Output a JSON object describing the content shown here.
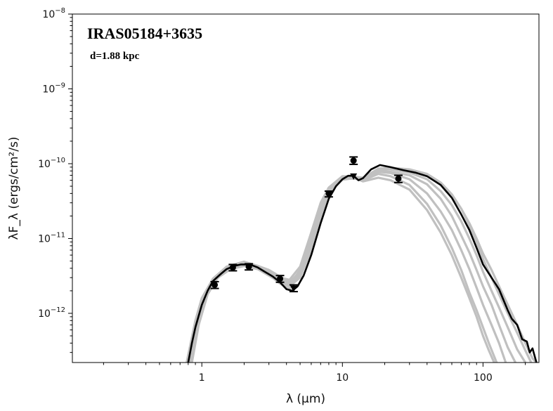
{
  "chart_data": {
    "type": "line",
    "title": "IRAS05184+3635",
    "subtitle": "d=1.88 kpc",
    "xlabel": "λ (μm)",
    "ylabel": "λF_λ (ergs/cm²/s)",
    "xscale": "log",
    "yscale": "log",
    "xlim": [
      0.12,
      250
    ],
    "ylim": [
      2.2e-13,
      1e-08
    ],
    "x_ticks": [
      {
        "value": 1,
        "label": "1"
      },
      {
        "value": 10,
        "label": "10"
      },
      {
        "value": 100,
        "label": "100"
      }
    ],
    "y_ticks": [
      {
        "value": 1e-12,
        "base": "10",
        "exp": "−12"
      },
      {
        "value": 1e-11,
        "base": "10",
        "exp": "−11"
      },
      {
        "value": 1e-10,
        "base": "10",
        "exp": "−10"
      },
      {
        "value": 1e-09,
        "base": "10",
        "exp": "−9"
      },
      {
        "value": 1e-08,
        "base": "10",
        "exp": "−8"
      }
    ],
    "grid": false,
    "observations": [
      {
        "x": 1.235,
        "y": 2.4e-12,
        "err_low": 2.15e-12,
        "err_high": 2.65e-12,
        "marker": "circle"
      },
      {
        "x": 1.662,
        "y": 4.1e-12,
        "err_low": 3.7e-12,
        "err_high": 4.5e-12,
        "marker": "circle"
      },
      {
        "x": 2.159,
        "y": 4.2e-12,
        "err_low": 3.8e-12,
        "err_high": 4.6e-12,
        "marker": "circle"
      },
      {
        "x": 3.6,
        "y": 2.9e-12,
        "err_low": 2.6e-12,
        "err_high": 3.2e-12,
        "marker": "circle"
      },
      {
        "x": 4.5,
        "y": 2.15e-12,
        "err_low": 1.95e-12,
        "err_high": 2.4e-12,
        "marker": "triangle"
      },
      {
        "x": 8.0,
        "y": 4e-11,
        "err_low": 3.6e-11,
        "err_high": 4.3e-11,
        "marker": "circle"
      },
      {
        "x": 12.0,
        "y": 1.1e-10,
        "err_low": 9.8e-11,
        "err_high": 1.23e-10,
        "marker": "circle"
      },
      {
        "x": 12.0,
        "y": 6.8e-11,
        "marker": "triangle"
      },
      {
        "x": 25.0,
        "y": 6.3e-11,
        "err_low": 5.6e-11,
        "err_high": 7e-11,
        "marker": "circle"
      }
    ],
    "series": [
      {
        "style": "best",
        "color": "#000000",
        "points": [
          [
            0.8,
            2.2e-13
          ],
          [
            0.85,
            4e-13
          ],
          [
            0.9,
            6.5e-13
          ],
          [
            1.0,
            1.3e-12
          ],
          [
            1.1,
            2e-12
          ],
          [
            1.2,
            2.7e-12
          ],
          [
            1.35,
            3.3e-12
          ],
          [
            1.5,
            3.9e-12
          ],
          [
            1.7,
            4.3e-12
          ],
          [
            1.9,
            4.5e-12
          ],
          [
            2.2,
            4.5e-12
          ],
          [
            2.5,
            4.1e-12
          ],
          [
            2.8,
            3.6e-12
          ],
          [
            3.2,
            3.1e-12
          ],
          [
            3.6,
            2.6e-12
          ],
          [
            4.0,
            2.1e-12
          ],
          [
            4.4,
            2e-12
          ],
          [
            4.8,
            2.3e-12
          ],
          [
            5.3,
            3.2e-12
          ],
          [
            6.0,
            6e-12
          ],
          [
            7.0,
            1.6e-11
          ],
          [
            8.0,
            3.4e-11
          ],
          [
            9.0,
            5e-11
          ],
          [
            10.0,
            6.2e-11
          ],
          [
            11.0,
            6.9e-11
          ],
          [
            12.0,
            6.9e-11
          ],
          [
            13.0,
            6e-11
          ],
          [
            14.0,
            6.4e-11
          ],
          [
            16.0,
            8.4e-11
          ],
          [
            18.5,
            9.6e-11
          ],
          [
            22.0,
            9e-11
          ],
          [
            27.0,
            8.2e-11
          ],
          [
            33.0,
            7.6e-11
          ],
          [
            40.0,
            6.8e-11
          ],
          [
            50.0,
            5.2e-11
          ],
          [
            60.0,
            3.5e-11
          ],
          [
            70.0,
            2.1e-11
          ],
          [
            80.0,
            1.3e-11
          ],
          [
            90.0,
            7.5e-12
          ],
          [
            100.0,
            4.5e-12
          ],
          [
            115.0,
            3e-12
          ],
          [
            130.0,
            2.1e-12
          ],
          [
            140.0,
            1.5e-12
          ],
          [
            150.0,
            1.1e-12
          ],
          [
            160.0,
            8.5e-13
          ],
          [
            175.0,
            7e-13
          ],
          [
            190.0,
            4.5e-13
          ],
          [
            205.0,
            4.2e-13
          ],
          [
            215.0,
            3e-13
          ],
          [
            225.0,
            3.4e-13
          ],
          [
            240.0,
            2.2e-13
          ]
        ]
      },
      {
        "style": "model",
        "color": "#c0c0c0",
        "points": [
          [
            0.82,
            2.2e-13
          ],
          [
            0.9,
            6.5e-13
          ],
          [
            1.0,
            1.5e-12
          ],
          [
            1.2,
            2.9e-12
          ],
          [
            1.5,
            4.1e-12
          ],
          [
            2.0,
            4.7e-12
          ],
          [
            2.5,
            4.2e-12
          ],
          [
            3.0,
            3.5e-12
          ],
          [
            3.6,
            2.7e-12
          ],
          [
            4.2,
            2.3e-12
          ],
          [
            5.0,
            3e-12
          ],
          [
            6.0,
            7e-12
          ],
          [
            7.0,
            1.9e-11
          ],
          [
            8.0,
            3.8e-11
          ],
          [
            10.0,
            6.5e-11
          ],
          [
            12.0,
            6.4e-11
          ],
          [
            14.0,
            6e-11
          ],
          [
            18.0,
            7.3e-11
          ],
          [
            22.0,
            6.8e-11
          ],
          [
            30.0,
            5.2e-11
          ],
          [
            40.0,
            2.9e-11
          ],
          [
            50.0,
            1.5e-11
          ],
          [
            60.0,
            7.5e-12
          ],
          [
            70.0,
            3.8e-12
          ],
          [
            80.0,
            1.9e-12
          ],
          [
            90.0,
            1.1e-12
          ],
          [
            100.0,
            6.5e-13
          ],
          [
            110.0,
            4e-13
          ],
          [
            125.0,
            2.2e-13
          ]
        ]
      },
      {
        "style": "model",
        "color": "#c0c0c0",
        "points": [
          [
            0.78,
            2.2e-13
          ],
          [
            0.9,
            8e-13
          ],
          [
            1.0,
            1.6e-12
          ],
          [
            1.2,
            2.9e-12
          ],
          [
            1.5,
            4.2e-12
          ],
          [
            2.0,
            4.9e-12
          ],
          [
            2.5,
            4.3e-12
          ],
          [
            3.0,
            3.3e-12
          ],
          [
            3.6,
            2.5e-12
          ],
          [
            4.2,
            2.1e-12
          ],
          [
            5.0,
            3.5e-12
          ],
          [
            6.0,
            9e-12
          ],
          [
            7.0,
            2.4e-11
          ],
          [
            8.0,
            4.2e-11
          ],
          [
            10.0,
            6.2e-11
          ],
          [
            12.0,
            6.5e-11
          ],
          [
            14.0,
            5.8e-11
          ],
          [
            18.0,
            6.5e-11
          ],
          [
            22.0,
            6e-11
          ],
          [
            30.0,
            4.5e-11
          ],
          [
            40.0,
            2.4e-11
          ],
          [
            50.0,
            1.2e-11
          ],
          [
            60.0,
            6e-12
          ],
          [
            70.0,
            3e-12
          ],
          [
            80.0,
            1.6e-12
          ],
          [
            90.0,
            9e-13
          ],
          [
            100.0,
            5e-13
          ],
          [
            110.0,
            3.2e-13
          ],
          [
            120.0,
            2.2e-13
          ]
        ]
      },
      {
        "style": "model",
        "color": "#c0c0c0",
        "points": [
          [
            0.85,
            2.2e-13
          ],
          [
            0.95,
            7e-13
          ],
          [
            1.1,
            1.8e-12
          ],
          [
            1.3,
            3e-12
          ],
          [
            1.6,
            3.9e-12
          ],
          [
            2.0,
            4.3e-12
          ],
          [
            2.5,
            3.9e-12
          ],
          [
            3.0,
            3.2e-12
          ],
          [
            3.6,
            2.6e-12
          ],
          [
            4.2,
            2.4e-12
          ],
          [
            5.0,
            3.8e-12
          ],
          [
            6.0,
            1.1e-11
          ],
          [
            7.0,
            2.7e-11
          ],
          [
            8.0,
            4.5e-11
          ],
          [
            10.0,
            6.6e-11
          ],
          [
            12.0,
            6.6e-11
          ],
          [
            14.0,
            6.3e-11
          ],
          [
            18.0,
            8e-11
          ],
          [
            22.0,
            7.8e-11
          ],
          [
            30.0,
            7e-11
          ],
          [
            40.0,
            5.3e-11
          ],
          [
            50.0,
            3.4e-11
          ],
          [
            60.0,
            2e-11
          ],
          [
            70.0,
            1.1e-11
          ],
          [
            80.0,
            6.5e-12
          ],
          [
            90.0,
            3.8e-12
          ],
          [
            100.0,
            2.3e-12
          ],
          [
            115.0,
            1.3e-12
          ],
          [
            130.0,
            7e-13
          ],
          [
            150.0,
            3.5e-13
          ],
          [
            170.0,
            2.2e-13
          ]
        ]
      },
      {
        "style": "model",
        "color": "#c0c0c0",
        "points": [
          [
            0.8,
            2.2e-13
          ],
          [
            0.9,
            7e-13
          ],
          [
            1.0,
            1.4e-12
          ],
          [
            1.2,
            2.6e-12
          ],
          [
            1.5,
            3.8e-12
          ],
          [
            2.0,
            4.4e-12
          ],
          [
            2.5,
            4.1e-12
          ],
          [
            3.0,
            3.6e-12
          ],
          [
            3.6,
            3e-12
          ],
          [
            4.2,
            2.8e-12
          ],
          [
            5.0,
            4.2e-12
          ],
          [
            6.0,
            1.2e-11
          ],
          [
            7.0,
            3e-11
          ],
          [
            8.0,
            4.8e-11
          ],
          [
            10.0,
            6.8e-11
          ],
          [
            12.0,
            6.7e-11
          ],
          [
            14.0,
            6.5e-11
          ],
          [
            18.0,
            8.5e-11
          ],
          [
            22.0,
            8.4e-11
          ],
          [
            30.0,
            7.6e-11
          ],
          [
            40.0,
            6.2e-11
          ],
          [
            50.0,
            4.3e-11
          ],
          [
            60.0,
            2.8e-11
          ],
          [
            70.0,
            1.7e-11
          ],
          [
            80.0,
            1e-11
          ],
          [
            90.0,
            6e-12
          ],
          [
            100.0,
            3.6e-12
          ],
          [
            115.0,
            2e-12
          ],
          [
            130.0,
            1.2e-12
          ],
          [
            150.0,
            6.5e-13
          ],
          [
            175.0,
            3.3e-13
          ],
          [
            200.0,
            2.2e-13
          ]
        ]
      },
      {
        "style": "model",
        "color": "#c0c0c0",
        "points": [
          [
            0.84,
            2.2e-13
          ],
          [
            0.95,
            9e-13
          ],
          [
            1.1,
            2.1e-12
          ],
          [
            1.3,
            3.2e-12
          ],
          [
            1.6,
            4e-12
          ],
          [
            2.0,
            4.5e-12
          ],
          [
            2.5,
            4.3e-12
          ],
          [
            3.0,
            3.8e-12
          ],
          [
            3.6,
            3.1e-12
          ],
          [
            4.2,
            2.6e-12
          ],
          [
            5.0,
            3.6e-12
          ],
          [
            6.0,
            1e-11
          ],
          [
            7.0,
            2.6e-11
          ],
          [
            8.0,
            4.5e-11
          ],
          [
            10.0,
            6.4e-11
          ],
          [
            12.0,
            6.3e-11
          ],
          [
            14.0,
            6.2e-11
          ],
          [
            18.0,
            8.2e-11
          ],
          [
            22.0,
            8.6e-11
          ],
          [
            30.0,
            8.1e-11
          ],
          [
            40.0,
            7e-11
          ],
          [
            50.0,
            5.3e-11
          ],
          [
            60.0,
            3.8e-11
          ],
          [
            70.0,
            2.5e-11
          ],
          [
            80.0,
            1.6e-11
          ],
          [
            90.0,
            1e-11
          ],
          [
            100.0,
            6.3e-12
          ],
          [
            115.0,
            3.8e-12
          ],
          [
            130.0,
            2.3e-12
          ],
          [
            150.0,
            1.3e-12
          ],
          [
            175.0,
            7e-13
          ],
          [
            200.0,
            4e-13
          ],
          [
            225.0,
            2.5e-13
          ],
          [
            240.0,
            2.2e-13
          ]
        ]
      },
      {
        "style": "model",
        "color": "#c0c0c0",
        "points": [
          [
            0.79,
            2.2e-13
          ],
          [
            0.88,
            6e-13
          ],
          [
            1.0,
            1.5e-12
          ],
          [
            1.2,
            2.8e-12
          ],
          [
            1.5,
            4e-12
          ],
          [
            2.0,
            4.6e-12
          ],
          [
            2.5,
            4.2e-12
          ],
          [
            3.0,
            3.4e-12
          ],
          [
            3.6,
            2.6e-12
          ],
          [
            4.2,
            2.3e-12
          ],
          [
            5.0,
            3.2e-12
          ],
          [
            6.0,
            8e-12
          ],
          [
            7.0,
            2.1e-11
          ],
          [
            8.0,
            4e-11
          ],
          [
            10.0,
            6.3e-11
          ],
          [
            12.0,
            6.5e-11
          ],
          [
            14.0,
            6.1e-11
          ],
          [
            18.0,
            7.8e-11
          ],
          [
            22.0,
            7.5e-11
          ],
          [
            30.0,
            6.2e-11
          ],
          [
            40.0,
            4e-11
          ],
          [
            50.0,
            2.3e-11
          ],
          [
            60.0,
            1.3e-11
          ],
          [
            70.0,
            7e-12
          ],
          [
            80.0,
            3.9e-12
          ],
          [
            90.0,
            2.2e-12
          ],
          [
            100.0,
            1.3e-12
          ],
          [
            115.0,
            7e-13
          ],
          [
            130.0,
            4e-13
          ],
          [
            145.0,
            2.2e-13
          ]
        ]
      },
      {
        "style": "model",
        "color": "#c0c0c0",
        "points": [
          [
            0.81,
            2.2e-13
          ],
          [
            0.92,
            8e-13
          ],
          [
            1.05,
            1.8e-12
          ],
          [
            1.25,
            3e-12
          ],
          [
            1.5,
            3.9e-12
          ],
          [
            2.0,
            4.4e-12
          ],
          [
            2.5,
            4.2e-12
          ],
          [
            3.0,
            3.7e-12
          ],
          [
            3.6,
            2.9e-12
          ],
          [
            4.2,
            2.5e-12
          ],
          [
            5.0,
            3.3e-12
          ],
          [
            6.0,
            8.5e-12
          ],
          [
            7.0,
            2.2e-11
          ],
          [
            8.0,
            4.1e-11
          ],
          [
            10.0,
            6.1e-11
          ],
          [
            12.0,
            6.4e-11
          ],
          [
            14.0,
            6.4e-11
          ],
          [
            18.0,
            8.6e-11
          ],
          [
            22.0,
            8.8e-11
          ],
          [
            30.0,
            8.4e-11
          ],
          [
            40.0,
            7.3e-11
          ],
          [
            50.0,
            5.6e-11
          ],
          [
            60.0,
            3.9e-11
          ],
          [
            70.0,
            2.5e-11
          ],
          [
            80.0,
            1.5e-11
          ],
          [
            90.0,
            9e-12
          ],
          [
            100.0,
            5.3e-12
          ],
          [
            115.0,
            3e-12
          ],
          [
            130.0,
            1.8e-12
          ],
          [
            150.0,
            1e-12
          ],
          [
            175.0,
            5.5e-13
          ],
          [
            200.0,
            3.2e-13
          ],
          [
            220.0,
            2.2e-13
          ]
        ]
      }
    ]
  }
}
